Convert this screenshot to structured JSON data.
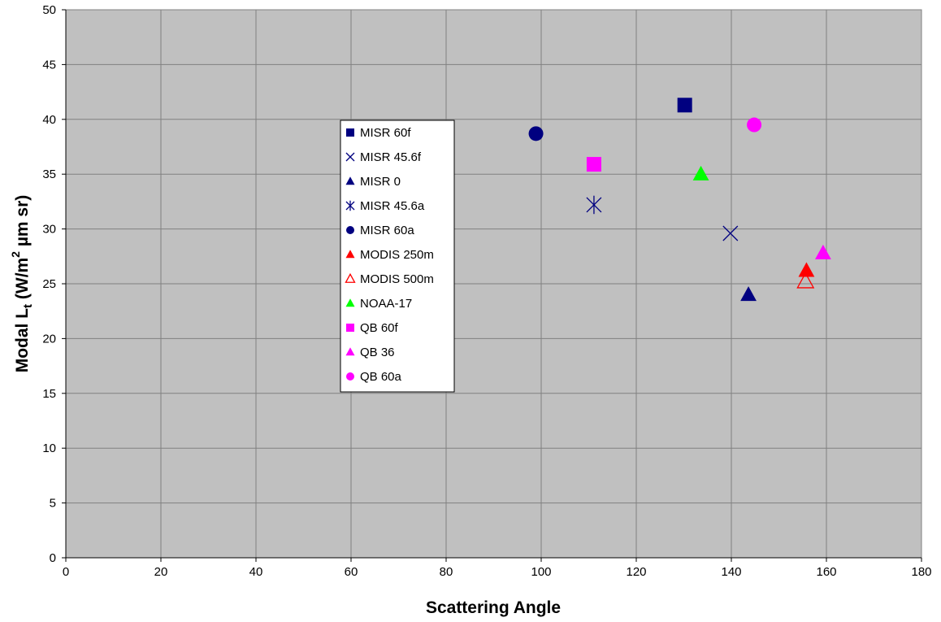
{
  "chart_data": {
    "type": "scatter",
    "xlabel": "Scattering Angle",
    "ylabel": {
      "prefix": "Modal L",
      "sub": "t",
      "middle": " (W/m",
      "sup": "2",
      "suffix": " µm sr)"
    },
    "xlim": [
      0,
      180
    ],
    "ylim": [
      0,
      50
    ],
    "xticks": [
      0,
      20,
      40,
      60,
      80,
      100,
      120,
      140,
      160,
      180
    ],
    "yticks": [
      0,
      5,
      10,
      15,
      20,
      25,
      30,
      35,
      40,
      45,
      50
    ],
    "grid": true,
    "legend_position": "center-left",
    "background_color": "#c0c0c0",
    "series": [
      {
        "name": "MISR 60f",
        "marker": "square",
        "color": "#000080",
        "x": 130.2,
        "y": 41.3
      },
      {
        "name": "MISR 45.6f",
        "marker": "x",
        "color": "#000080",
        "x": 139.8,
        "y": 29.6
      },
      {
        "name": "MISR 0",
        "marker": "triangle",
        "color": "#000080",
        "x": 143.6,
        "y": 24.0
      },
      {
        "name": "MISR 45.6a",
        "marker": "star",
        "color": "#000080",
        "x": 111.1,
        "y": 32.2
      },
      {
        "name": "MISR 60a",
        "marker": "circle",
        "color": "#000080",
        "x": 98.9,
        "y": 38.7
      },
      {
        "name": "MODIS 250m",
        "marker": "triangle",
        "color": "#ff0000",
        "x": 155.8,
        "y": 26.2
      },
      {
        "name": "MODIS 500m",
        "marker": "triangle-open",
        "color": "#ff0000",
        "x": 155.6,
        "y": 25.2
      },
      {
        "name": "NOAA-17",
        "marker": "triangle",
        "color": "#00ff00",
        "x": 133.6,
        "y": 35.0
      },
      {
        "name": "QB 60f",
        "marker": "square",
        "color": "#ff00ff",
        "x": 111.1,
        "y": 35.9
      },
      {
        "name": "QB 36",
        "marker": "triangle",
        "color": "#ff00ff",
        "x": 159.3,
        "y": 27.8
      },
      {
        "name": "QB 60a",
        "marker": "circle",
        "color": "#ff00ff",
        "x": 144.8,
        "y": 39.5
      }
    ]
  }
}
